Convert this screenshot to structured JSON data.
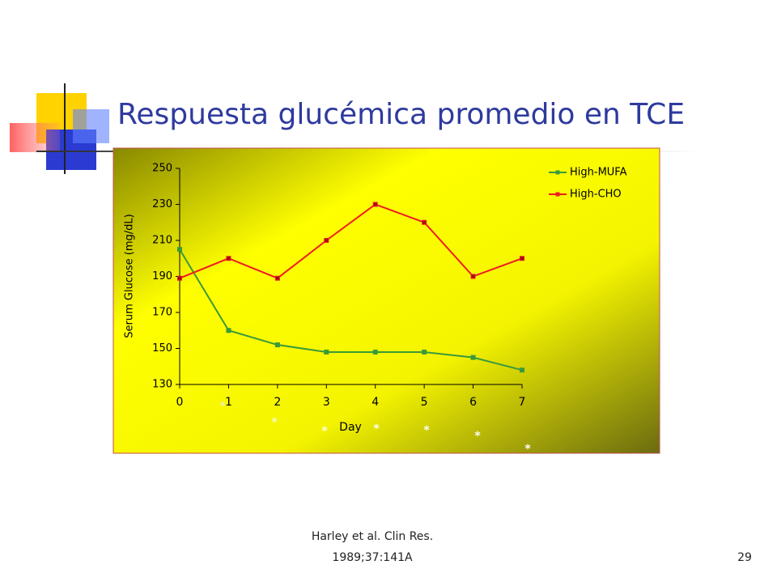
{
  "slide_title": "Respuesta glucémica promedio en TCE",
  "footer": {
    "citation_line1": "Harley et al. Clin Res.",
    "citation_line2": "1989;37:141A",
    "page_number": "29"
  },
  "chart_data": {
    "type": "line",
    "x": [
      0,
      1,
      2,
      3,
      4,
      5,
      6,
      7
    ],
    "xlim": [
      0,
      7
    ],
    "xticks": [
      0,
      1,
      2,
      3,
      4,
      5,
      6,
      7
    ],
    "ylim": [
      130,
      250
    ],
    "yticks": [
      130,
      150,
      170,
      190,
      210,
      230,
      250
    ],
    "x_label": "Day",
    "y_label": "Serum Glucose (mg/dL)",
    "legend": "top-right",
    "series": [
      {
        "name": "High-MUFA",
        "color": "#3a9a3a",
        "values": [
          205,
          160,
          152,
          148,
          148,
          148,
          145,
          138
        ]
      },
      {
        "name": "High-CHO",
        "color": "#ee1c24",
        "values": [
          189,
          200,
          189,
          210,
          230,
          220,
          190,
          200
        ]
      }
    ],
    "annotations": [
      "*",
      "*",
      "*",
      "*",
      "*",
      "*",
      "*"
    ]
  }
}
